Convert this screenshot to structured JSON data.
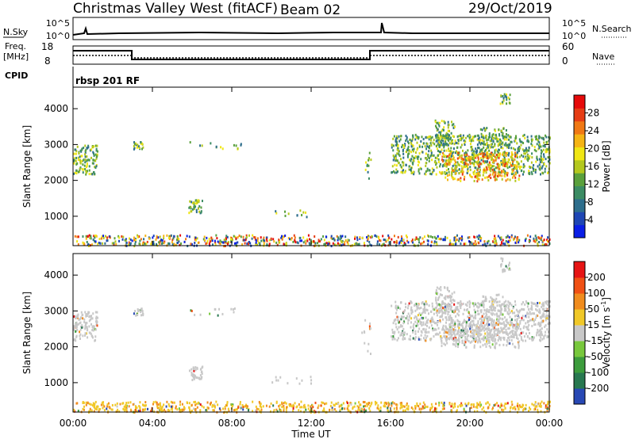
{
  "header": {
    "station": "Christmas Valley West (fitACF)",
    "beam": "Beam 02",
    "date": "29/Oct/2019"
  },
  "top_panels": {
    "nsky_label": "N.Sky",
    "nsearch_label": "N.Search",
    "nsky_ticks": [
      "10^5",
      "10^0"
    ],
    "nsearch_ticks": [
      "10^5",
      "10^0"
    ],
    "freq_label_1": "Freq.",
    "freq_label_2": "[MHz]",
    "freq_ticks": [
      "18",
      "8"
    ],
    "nave_label": "Nave",
    "nave_ticks": [
      "60",
      "0"
    ],
    "cpid_label": "CPID",
    "cpid_value": "rbsp 201 RF"
  },
  "chart_data": [
    {
      "type": "heatmap",
      "title": "",
      "xlabel": "",
      "ylabel": "Slant Range [km]",
      "x_ticks": [
        "00:00",
        "04:00",
        "08:00",
        "12:00",
        "16:00",
        "20:00",
        "00:00"
      ],
      "y_ticks": [
        1000,
        2000,
        3000,
        4000
      ],
      "ylim": [
        180,
        4600
      ],
      "colorbar": {
        "label": "Power [dB]",
        "ticks": [
          "4",
          "8",
          "12",
          "16",
          "20",
          "24",
          "28"
        ],
        "colors": [
          "#0a1ee6",
          "#1e46b4",
          "#2e6e8c",
          "#3c8c64",
          "#5aa03c",
          "#b4c81e",
          "#f0e614",
          "#f5b414",
          "#f07814",
          "#e63c14",
          "#e60a0a"
        ]
      }
    },
    {
      "type": "heatmap",
      "title": "",
      "xlabel": "Time UT",
      "ylabel": "Slant Range [km]",
      "x_ticks": [
        "00:00",
        "04:00",
        "08:00",
        "12:00",
        "16:00",
        "20:00",
        "00:00"
      ],
      "y_ticks": [
        1000,
        2000,
        3000,
        4000
      ],
      "ylim": [
        180,
        4600
      ],
      "colorbar": {
        "label": "Velocity",
        "unit": "[m s",
        "unit_exp": "-1",
        "unit_end": "]",
        "ticks": [
          "200",
          "100",
          "50",
          "15",
          "-15",
          "-50",
          "-100",
          "-200"
        ],
        "colors": [
          "#2848b4",
          "#287850",
          "#3c9c3c",
          "#78c83c",
          "#c8c8c8",
          "#f0c828",
          "#f08c1e",
          "#f05014",
          "#e61414"
        ]
      }
    }
  ]
}
